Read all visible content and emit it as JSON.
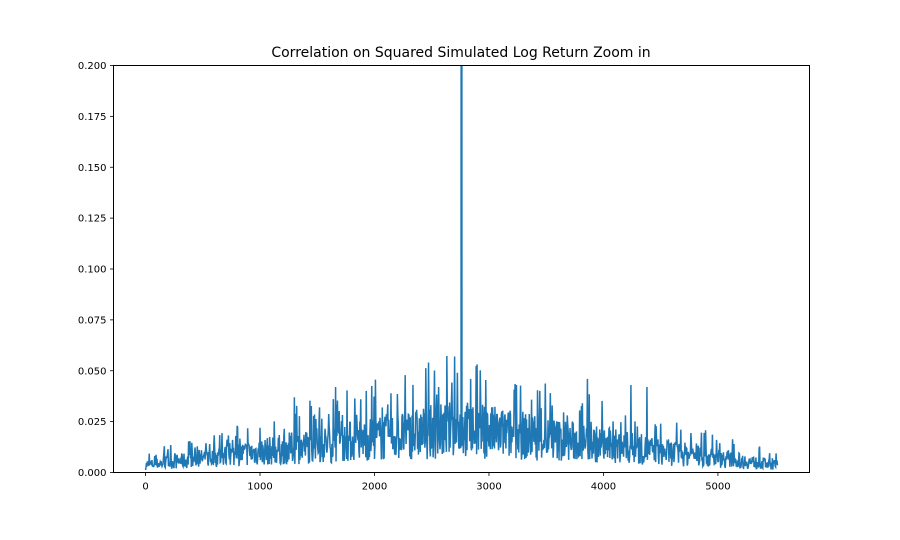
{
  "chart_data": {
    "type": "line",
    "title": "Correlation on Squared Simulated Log Return Zoom in",
    "xlabel": "",
    "ylabel": "",
    "xlim": [
      -280,
      5800
    ],
    "ylim": [
      0,
      0.2
    ],
    "x_ticks": [
      0,
      1000,
      2000,
      3000,
      4000,
      5000
    ],
    "x_tick_labels": [
      "0",
      "1000",
      "2000",
      "3000",
      "4000",
      "5000"
    ],
    "y_ticks": [
      0.0,
      0.025,
      0.05,
      0.075,
      0.1,
      0.125,
      0.15,
      0.175,
      0.2
    ],
    "y_tick_labels": [
      "0.000",
      "0.025",
      "0.050",
      "0.075",
      "0.100",
      "0.125",
      "0.150",
      "0.175",
      "0.200"
    ],
    "grid": false,
    "color": "#1f77b4",
    "series": [
      {
        "name": "",
        "x_start": 0,
        "x_end": 5520,
        "center_x": 2760,
        "center_value": 1.0,
        "peaks": [
          {
            "x": 130,
            "y": 0.017
          },
          {
            "x": 310,
            "y": 0.02
          },
          {
            "x": 560,
            "y": 0.014
          },
          {
            "x": 650,
            "y": 0.033
          },
          {
            "x": 760,
            "y": 0.016
          },
          {
            "x": 1000,
            "y": 0.022
          },
          {
            "x": 1110,
            "y": 0.042
          },
          {
            "x": 1170,
            "y": 0.039
          },
          {
            "x": 1300,
            "y": 0.037
          },
          {
            "x": 1370,
            "y": 0.048
          },
          {
            "x": 1520,
            "y": 0.032
          },
          {
            "x": 1660,
            "y": 0.042
          },
          {
            "x": 1750,
            "y": 0.045
          },
          {
            "x": 1880,
            "y": 0.036
          },
          {
            "x": 2010,
            "y": 0.034
          },
          {
            "x": 2150,
            "y": 0.047
          },
          {
            "x": 2210,
            "y": 0.048
          },
          {
            "x": 2330,
            "y": 0.047
          },
          {
            "x": 2560,
            "y": 0.042
          },
          {
            "x": 2700,
            "y": 0.057
          },
          {
            "x": 2750,
            "y": 0.07
          },
          {
            "x": 2840,
            "y": 0.046
          },
          {
            "x": 3010,
            "y": 0.04
          },
          {
            "x": 3130,
            "y": 0.048
          },
          {
            "x": 3240,
            "y": 0.043
          },
          {
            "x": 3390,
            "y": 0.047
          },
          {
            "x": 3570,
            "y": 0.031
          },
          {
            "x": 3750,
            "y": 0.046
          },
          {
            "x": 3860,
            "y": 0.046
          },
          {
            "x": 4130,
            "y": 0.049
          },
          {
            "x": 4240,
            "y": 0.043
          },
          {
            "x": 4380,
            "y": 0.042
          },
          {
            "x": 4500,
            "y": 0.024
          },
          {
            "x": 4650,
            "y": 0.016
          },
          {
            "x": 4870,
            "y": 0.033
          },
          {
            "x": 5130,
            "y": 0.02
          },
          {
            "x": 5350,
            "y": 0.017
          }
        ]
      }
    ]
  }
}
